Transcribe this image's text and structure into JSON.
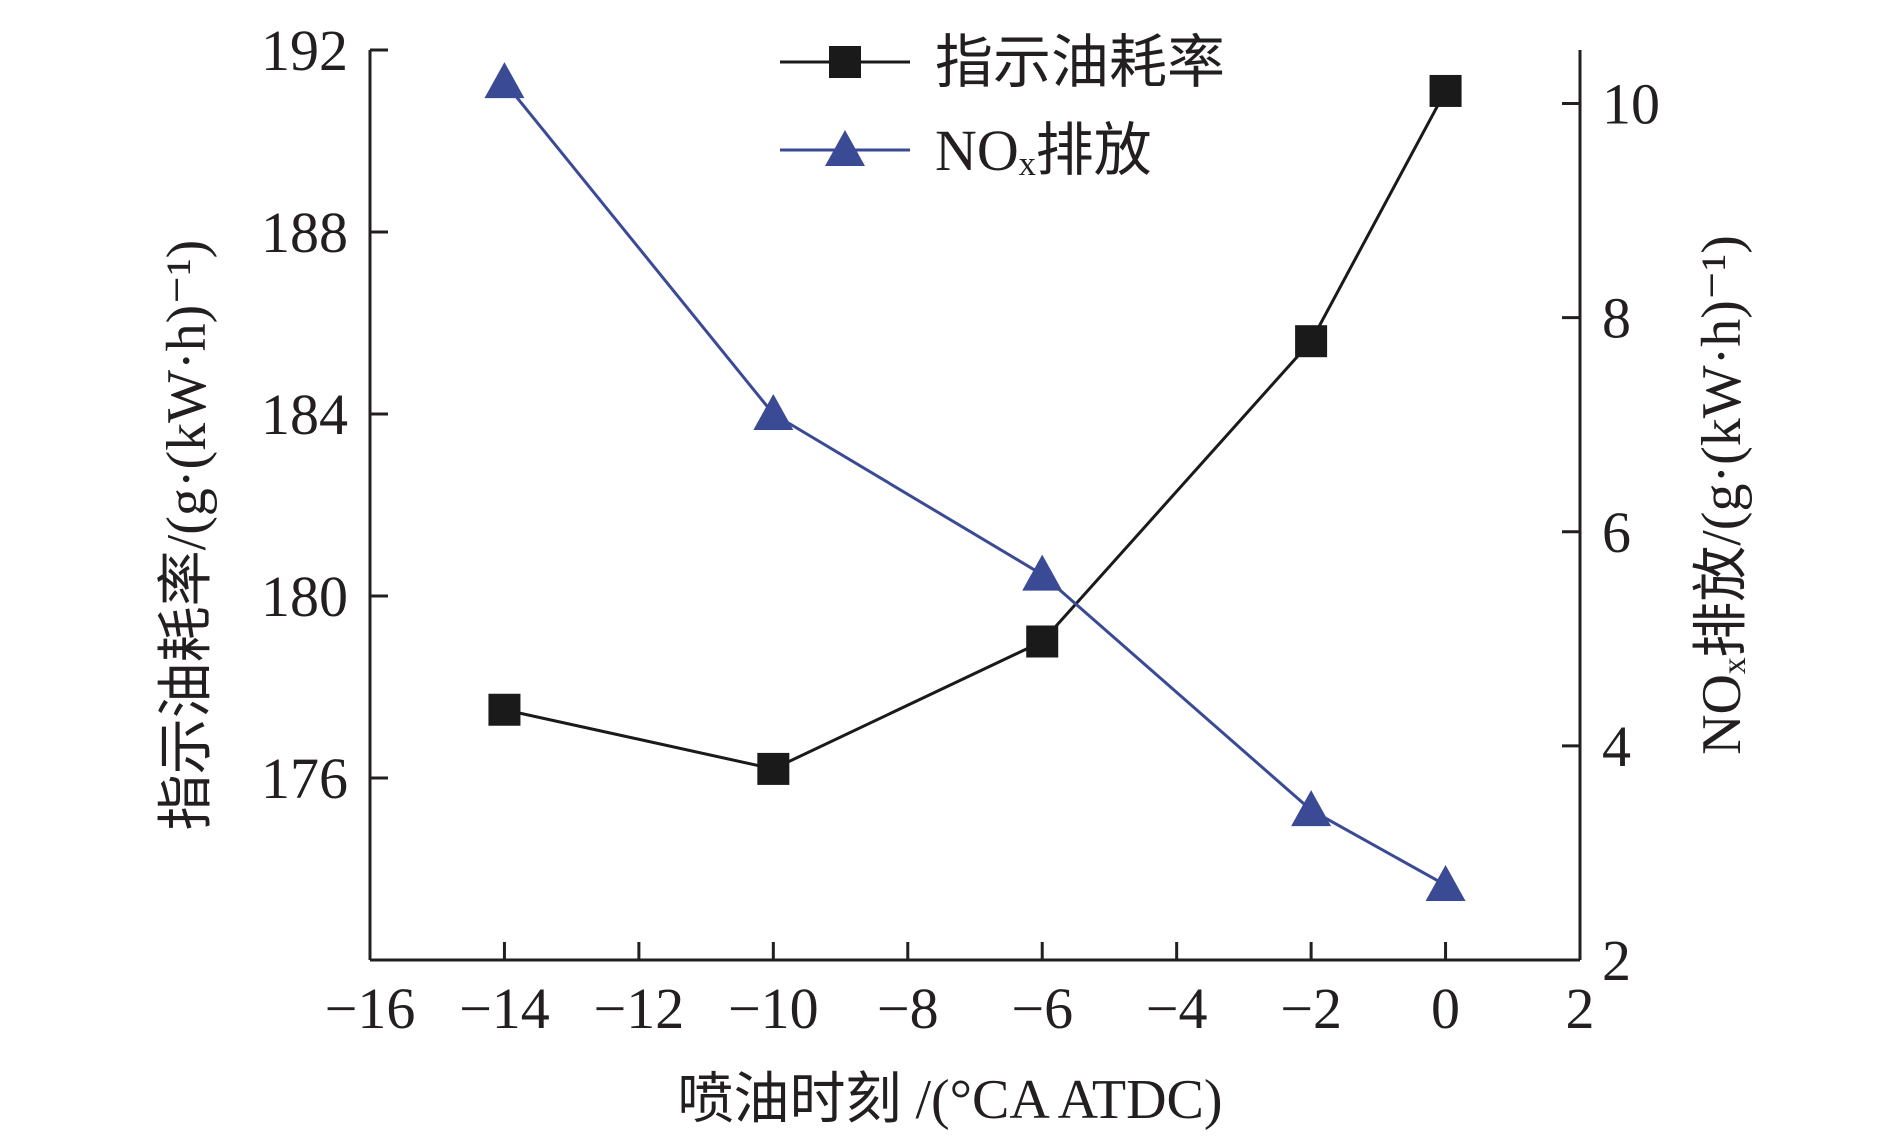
{
  "chart_data": {
    "type": "line",
    "title": "",
    "xlabel": "喷油时刻 /(°CA ATDC)",
    "ylabel_left": "指示油耗率/(g·(kW·h)⁻¹)",
    "ylabel_right": "NOₓ排放/(g·(kW·h)⁻¹)",
    "xlim": [
      -16,
      2
    ],
    "ylim_left": [
      172,
      192
    ],
    "ylim_right": [
      2,
      10.5
    ],
    "x_ticks": [
      -16,
      -14,
      -12,
      -10,
      -8,
      -6,
      -4,
      -2,
      0,
      2
    ],
    "x_tick_labels": [
      "−16",
      "−14",
      "−12",
      "−10",
      "−8",
      "−6",
      "−4",
      "−2",
      "0",
      "2"
    ],
    "y_left_ticks": [
      176,
      180,
      184,
      188,
      192
    ],
    "y_left_tick_labels": [
      "176",
      "180",
      "184",
      "188",
      "192"
    ],
    "y_right_ticks": [
      2,
      4,
      6,
      8,
      10
    ],
    "y_right_tick_labels": [
      "2",
      "4",
      "6",
      "8",
      "10"
    ],
    "grid": false,
    "legend_position": "top-center",
    "series": [
      {
        "name": "指示油耗率",
        "axis": "left",
        "marker": "square",
        "color": "#1a1a1a",
        "x": [
          -14,
          -10,
          -6,
          -2,
          0
        ],
        "values": [
          177.5,
          176.2,
          179.0,
          185.6,
          191.1
        ]
      },
      {
        "name": "NOₓ排放",
        "axis": "right",
        "marker": "triangle",
        "color": "#3b4a94",
        "x": [
          -14,
          -10,
          -6,
          -2,
          0
        ],
        "values": [
          10.2,
          7.1,
          5.6,
          3.4,
          2.7
        ]
      }
    ]
  }
}
